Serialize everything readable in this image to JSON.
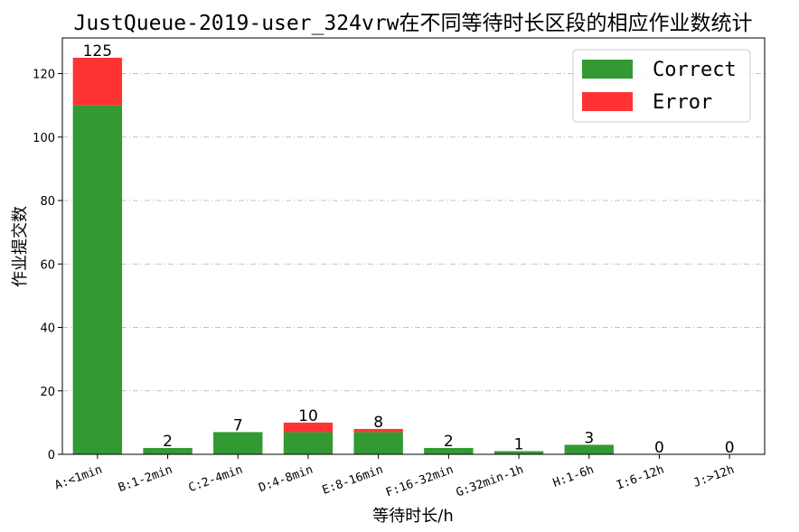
{
  "chart_data": {
    "type": "bar",
    "stacked": true,
    "title": "JustQueue-2019-user_324vrw在不同等待时长区段的相应作业数统计",
    "xlabel": "等待时长/h",
    "ylabel": "作业提交数",
    "categories": [
      "A:<1min",
      "B:1-2min",
      "C:2-4min",
      "D:4-8min",
      "E:8-16min",
      "F:16-32min",
      "G:32min-1h",
      "H:1-6h",
      "I:6-12h",
      "J:>12h"
    ],
    "series": [
      {
        "name": "Correct",
        "color": "#339933",
        "values": [
          110,
          2,
          7,
          7,
          7,
          2,
          1,
          3,
          0,
          0
        ]
      },
      {
        "name": "Error",
        "color": "#ff3333",
        "values": [
          15,
          0,
          0,
          3,
          1,
          0,
          0,
          0,
          0,
          0
        ]
      }
    ],
    "totals": [
      125,
      2,
      7,
      10,
      8,
      2,
      1,
      3,
      0,
      0
    ],
    "data_labels": [
      "125",
      "2",
      "7",
      "10",
      "8",
      "2",
      "1",
      "3",
      "0",
      "0"
    ],
    "yticks": [
      0,
      20,
      40,
      60,
      80,
      100,
      120
    ],
    "ylim": [
      0,
      131.25
    ],
    "grid": true,
    "grid_axis": "y",
    "legend_position": "top-right",
    "xtick_rotation": -20
  }
}
